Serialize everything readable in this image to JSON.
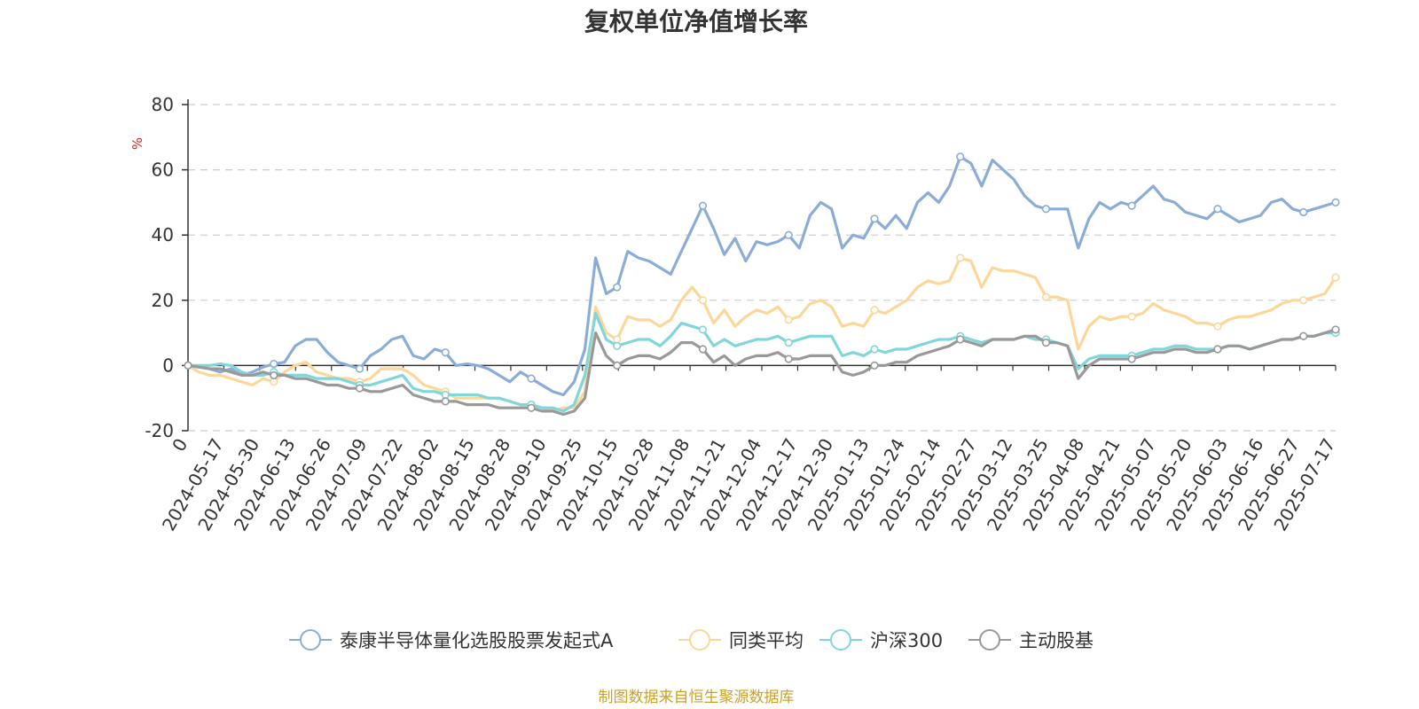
{
  "chart_data": {
    "type": "line",
    "title": "复权单位净值增长率",
    "ylabel": "%",
    "ylim": [
      -20,
      80
    ],
    "yticks": [
      -20,
      0,
      20,
      40,
      60,
      80
    ],
    "grid": true,
    "legend_position": "bottom",
    "source": "制图数据来自恒生聚源数据库",
    "x_tick_labels": [
      "0",
      "2024-05-17",
      "2024-05-30",
      "2024-06-13",
      "2024-06-26",
      "2024-07-09",
      "2024-07-22",
      "2024-08-02",
      "2024-08-15",
      "2024-08-28",
      "2024-09-10",
      "2024-09-25",
      "2024-10-15",
      "2024-10-28",
      "2024-11-08",
      "2024-11-21",
      "2024-12-04",
      "2024-12-17",
      "2024-12-30",
      "2025-01-13",
      "2025-01-24",
      "2025-02-14",
      "2025-02-27",
      "2025-03-12",
      "2025-03-25",
      "2025-04-08",
      "2025-04-21",
      "2025-05-07",
      "2025-05-20",
      "2025-06-03",
      "2025-06-16",
      "2025-06-27",
      "2025-07-17"
    ],
    "series": [
      {
        "name": "泰康半导体量化选股股票发起式A",
        "color": "#8cacd8",
        "values": [
          0,
          -0.5,
          -1,
          -2,
          -1,
          -3,
          -2,
          -0.5,
          0.5,
          1,
          6,
          8,
          8,
          4,
          1,
          0,
          -1,
          3,
          5,
          8,
          9,
          3,
          2,
          5,
          4,
          0,
          0.5,
          0,
          -1,
          -3,
          -5,
          -2,
          -4,
          -6,
          -8,
          -9,
          -5,
          5,
          33,
          22,
          24,
          35,
          33,
          32,
          30,
          28,
          35,
          42,
          49,
          42,
          34,
          39,
          32,
          38,
          37,
          38,
          40,
          36,
          46,
          50,
          48,
          36,
          40,
          39,
          45,
          42,
          46,
          42,
          50,
          53,
          50,
          55,
          64,
          62,
          55,
          63,
          60,
          57,
          52,
          49,
          48,
          48,
          48,
          36,
          45,
          50,
          48,
          50,
          49,
          52,
          55,
          51,
          50,
          47,
          46,
          45,
          48,
          46,
          44,
          45,
          46,
          50,
          51,
          48,
          47,
          48,
          49,
          50
        ]
      },
      {
        "name": "同类平均",
        "color": "#fcd799",
        "values": [
          0,
          -2,
          -3,
          -3,
          -4,
          -5,
          -6,
          -4,
          -5,
          -2,
          0,
          1,
          -2,
          -3,
          -4,
          -4,
          -5,
          -4,
          -1,
          -1,
          -1,
          -3,
          -6,
          -7,
          -8,
          -10,
          -10,
          -10,
          -10,
          -10,
          -11,
          -12,
          -12,
          -13,
          -14,
          -13,
          -13,
          -8,
          18,
          10,
          8,
          15,
          14,
          14,
          12,
          14,
          20,
          24,
          20,
          13,
          17,
          12,
          15,
          17,
          16,
          18,
          14,
          15,
          19,
          20,
          18,
          12,
          13,
          12,
          17,
          16,
          18,
          20,
          24,
          26,
          25,
          26,
          33,
          32,
          24,
          30,
          29,
          29,
          28,
          27,
          21,
          21,
          20,
          5,
          12,
          15,
          14,
          15,
          15,
          16,
          19,
          17,
          16,
          15,
          13,
          13,
          12,
          14,
          15,
          15,
          16,
          17,
          19,
          20,
          20,
          21,
          22,
          27
        ]
      },
      {
        "name": "沪深300",
        "color": "#80d6d9",
        "values": [
          0,
          0,
          0,
          0.5,
          0,
          -2,
          -3,
          -3,
          -2,
          -3,
          -3,
          -3,
          -4,
          -4,
          -4,
          -5,
          -6,
          -6,
          -5,
          -4,
          -3,
          -7,
          -8,
          -8,
          -9,
          -9,
          -9,
          -9,
          -10,
          -10,
          -11,
          -12,
          -12,
          -13,
          -13,
          -14,
          -12,
          -3,
          16,
          8,
          6,
          7,
          8,
          8,
          6,
          9,
          13,
          12,
          11,
          6,
          8,
          6,
          7,
          8,
          8,
          9,
          7,
          8,
          9,
          9,
          9,
          3,
          4,
          3,
          5,
          4,
          5,
          5,
          6,
          7,
          8,
          8,
          9,
          8,
          7,
          8,
          8,
          8,
          9,
          8,
          8,
          7,
          6,
          -1,
          2,
          3,
          3,
          3,
          3,
          4,
          5,
          5,
          6,
          6,
          5,
          5,
          5,
          6,
          6,
          5,
          6,
          7,
          8,
          8,
          9,
          9,
          10,
          10
        ]
      },
      {
        "name": "主动股基",
        "color": "#999999",
        "values": [
          0,
          -0.5,
          -1,
          -1,
          -2,
          -3,
          -3,
          -2,
          -3,
          -3,
          -4,
          -4,
          -5,
          -6,
          -6,
          -7,
          -7,
          -8,
          -8,
          -7,
          -6,
          -9,
          -10,
          -11,
          -11,
          -11,
          -12,
          -12,
          -12,
          -13,
          -13,
          -13,
          -13,
          -14,
          -14,
          -15,
          -14,
          -10,
          10,
          3,
          0,
          2,
          3,
          3,
          2,
          4,
          7,
          7,
          5,
          1,
          3,
          0,
          2,
          3,
          3,
          4,
          2,
          2,
          3,
          3,
          3,
          -2,
          -3,
          -2,
          0,
          0,
          1,
          1,
          3,
          4,
          5,
          6,
          8,
          7,
          6,
          8,
          8,
          8,
          9,
          9,
          7,
          7,
          6,
          -4,
          0,
          2,
          2,
          2,
          2,
          3,
          4,
          4,
          5,
          5,
          4,
          4,
          5,
          6,
          6,
          5,
          6,
          7,
          8,
          8,
          9,
          9,
          10,
          11
        ]
      }
    ]
  }
}
